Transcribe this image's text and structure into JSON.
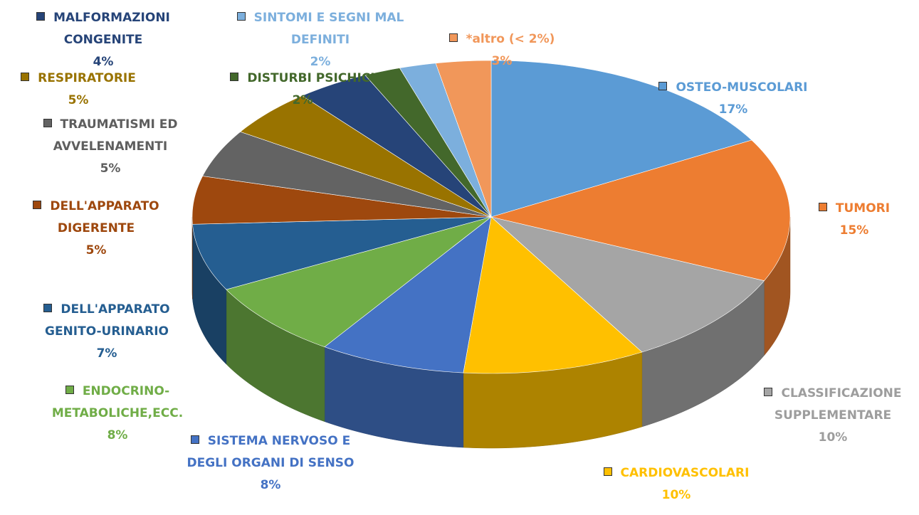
{
  "chart_data": {
    "type": "pie3d",
    "categories": [
      "OSTEO-MUSCOLARI",
      "TUMORI",
      "CLASSIFICAZIONE SUPPLEMENTARE",
      "CARDIOVASCOLARI",
      "SISTEMA NERVOSO E DEGLI ORGANI DI SENSO",
      "ENDOCRINO-METABOLICHE,ECC.",
      "DELL'APPARATO GENITO-URINARIO",
      "DELL'APPARATO DIGERENTE",
      "TRAUMATISMI ED AVVELENAMENTI",
      "RESPIRATORIE",
      "MALFORMAZIONI CONGENITE",
      "DISTURBI PSICHICI",
      "SINTOMI E SEGNI MAL DEFINITI",
      "*altro (< 2%)"
    ],
    "values": [
      17,
      15,
      10,
      10,
      8,
      8,
      7,
      5,
      5,
      5,
      4,
      2,
      2,
      3
    ],
    "value_labels": [
      "17%",
      "15%",
      "10%",
      "10%",
      "8%",
      "8%",
      "7%",
      "5%",
      "5%",
      "5%",
      "4%",
      "2%",
      "2%",
      "3%"
    ],
    "colors": [
      "#5b9bd5",
      "#ed7d31",
      "#a5a5a5",
      "#ffc000",
      "#4472c4",
      "#70ad47",
      "#255e91",
      "#9e480e",
      "#636363",
      "#997300",
      "#264478",
      "#43682b",
      "#7cafdd",
      "#f1975a"
    ]
  }
}
